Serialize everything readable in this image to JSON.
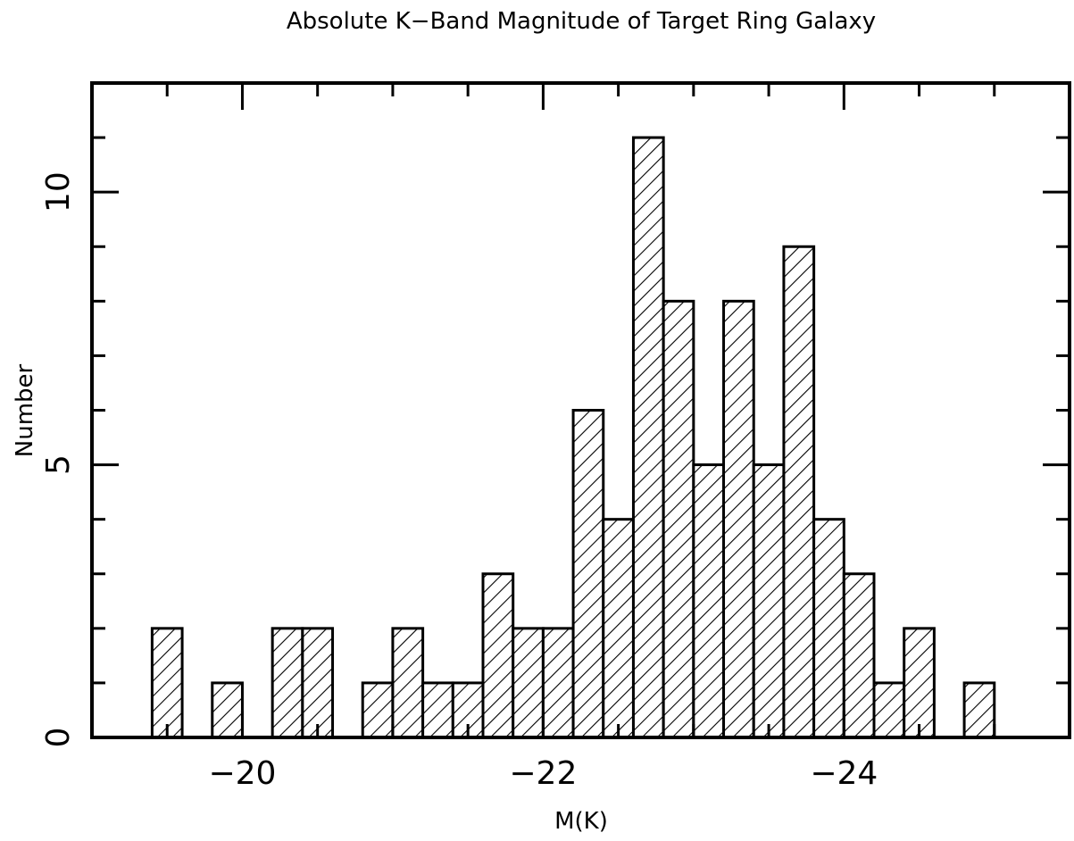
{
  "chart_data": {
    "type": "bar",
    "title": "Absolute K−Band Magnitude of Target Ring Galaxy",
    "xlabel": "M(K)",
    "ylabel": "Number",
    "xlim": [
      -19.0,
      -25.5
    ],
    "ylim": [
      0,
      12
    ],
    "bin_width": 0.2,
    "x_major_ticks": [
      -20,
      -22,
      -24
    ],
    "x_tick_labels": [
      "−20",
      "−22",
      "−24"
    ],
    "x_minor_step": 0.5,
    "y_major_ticks": [
      0,
      5,
      10
    ],
    "y_tick_labels": [
      "0",
      "5",
      "10"
    ],
    "y_minor_step": 1,
    "grid": false,
    "bars": [
      {
        "x_start": -19.4,
        "value": 2
      },
      {
        "x_start": -19.8,
        "value": 1
      },
      {
        "x_start": -20.2,
        "value": 2
      },
      {
        "x_start": -20.4,
        "value": 2
      },
      {
        "x_start": -20.8,
        "value": 1
      },
      {
        "x_start": -21.0,
        "value": 2
      },
      {
        "x_start": -21.2,
        "value": 1
      },
      {
        "x_start": -21.4,
        "value": 1
      },
      {
        "x_start": -21.6,
        "value": 3
      },
      {
        "x_start": -21.8,
        "value": 2
      },
      {
        "x_start": -22.0,
        "value": 2
      },
      {
        "x_start": -22.2,
        "value": 6
      },
      {
        "x_start": -22.4,
        "value": 4
      },
      {
        "x_start": -22.6,
        "value": 11
      },
      {
        "x_start": -22.8,
        "value": 8
      },
      {
        "x_start": -23.0,
        "value": 5
      },
      {
        "x_start": -23.2,
        "value": 8
      },
      {
        "x_start": -23.4,
        "value": 5
      },
      {
        "x_start": -23.6,
        "value": 9
      },
      {
        "x_start": -23.8,
        "value": 4
      },
      {
        "x_start": -24.0,
        "value": 3
      },
      {
        "x_start": -24.2,
        "value": 1
      },
      {
        "x_start": -24.4,
        "value": 2
      },
      {
        "x_start": -24.8,
        "value": 1
      }
    ]
  }
}
